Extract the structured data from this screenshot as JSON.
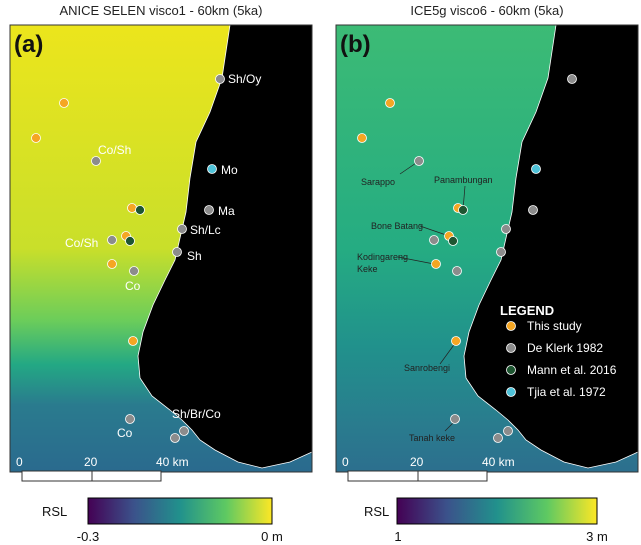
{
  "panels": [
    {
      "title": "ANICE SELEN visco1 - 60km (5ka)",
      "label": "(a)",
      "sites": [
        "Sh/Oy",
        "Co/Sh",
        "Mo",
        "Ma",
        "Sh/Lc",
        "Co/Sh",
        "Sh",
        "Co",
        "Sh/Br/Co",
        "Co"
      ],
      "scale": [
        "0",
        "20",
        "40 km"
      ],
      "colorbar": {
        "label": "RSL",
        "ticks": [
          "-0.3",
          "0 m"
        ]
      }
    },
    {
      "title": "ICE5g visco6 - 60km (5ka)",
      "label": "(b)",
      "sites": [
        "Sarappo",
        "Panambungan",
        "Bone Batang",
        "Kodingareng",
        "Keke",
        "Sanrobengi",
        "Tanah keke"
      ],
      "scale": [
        "0",
        "20",
        "40 km"
      ],
      "colorbar": {
        "label": "RSL",
        "ticks": [
          "1",
          "3 m"
        ]
      },
      "legend": {
        "title": "LEGEND",
        "entries": [
          "This study",
          "De Klerk 1982",
          "Mann et al. 2016",
          "Tjia et al. 1972"
        ]
      }
    }
  ]
}
